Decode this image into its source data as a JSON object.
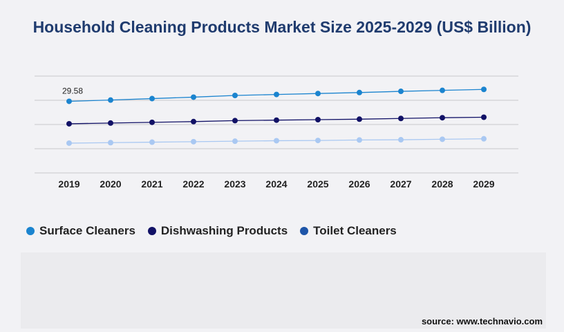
{
  "title": "Household Cleaning Products Market Size 2025-2029 (US$ Billion)",
  "source": "source: www.technavio.com",
  "chart_data": {
    "type": "line",
    "title": "Household Cleaning Products Market Size 2025-2029 (US$ Billion)",
    "xlabel": "",
    "ylabel": "",
    "x": [
      "2019",
      "2020",
      "2021",
      "2022",
      "2023",
      "2024",
      "2025",
      "2026",
      "2027",
      "2028",
      "2029"
    ],
    "ylim": [
      0,
      40
    ],
    "grid": "horizontal",
    "legend_position": "bottom-left",
    "series": [
      {
        "name": "Surface Cleaners",
        "color": "#1b84cf",
        "values": [
          29.58,
          30.1,
          30.7,
          31.3,
          32.0,
          32.4,
          32.8,
          33.2,
          33.7,
          34.1,
          34.5
        ]
      },
      {
        "name": "Dishwashing Products",
        "color": "#111166",
        "values": [
          20.3,
          20.6,
          20.9,
          21.2,
          21.6,
          21.8,
          22.0,
          22.2,
          22.5,
          22.8,
          23.0
        ]
      },
      {
        "name": "Toilet Cleaners",
        "color": "#a9c8f2",
        "values": [
          12.3,
          12.5,
          12.7,
          12.9,
          13.1,
          13.3,
          13.4,
          13.6,
          13.7,
          13.9,
          14.1
        ]
      }
    ],
    "data_labels": [
      {
        "series": 0,
        "index": 0,
        "text": "29.58"
      }
    ]
  },
  "legend": [
    {
      "label": "Surface Cleaners",
      "color": "#1b84cf"
    },
    {
      "label": "Dishwashing Products",
      "color": "#111166"
    },
    {
      "label": "Toilet Cleaners",
      "color": "#1e55a8"
    }
  ]
}
